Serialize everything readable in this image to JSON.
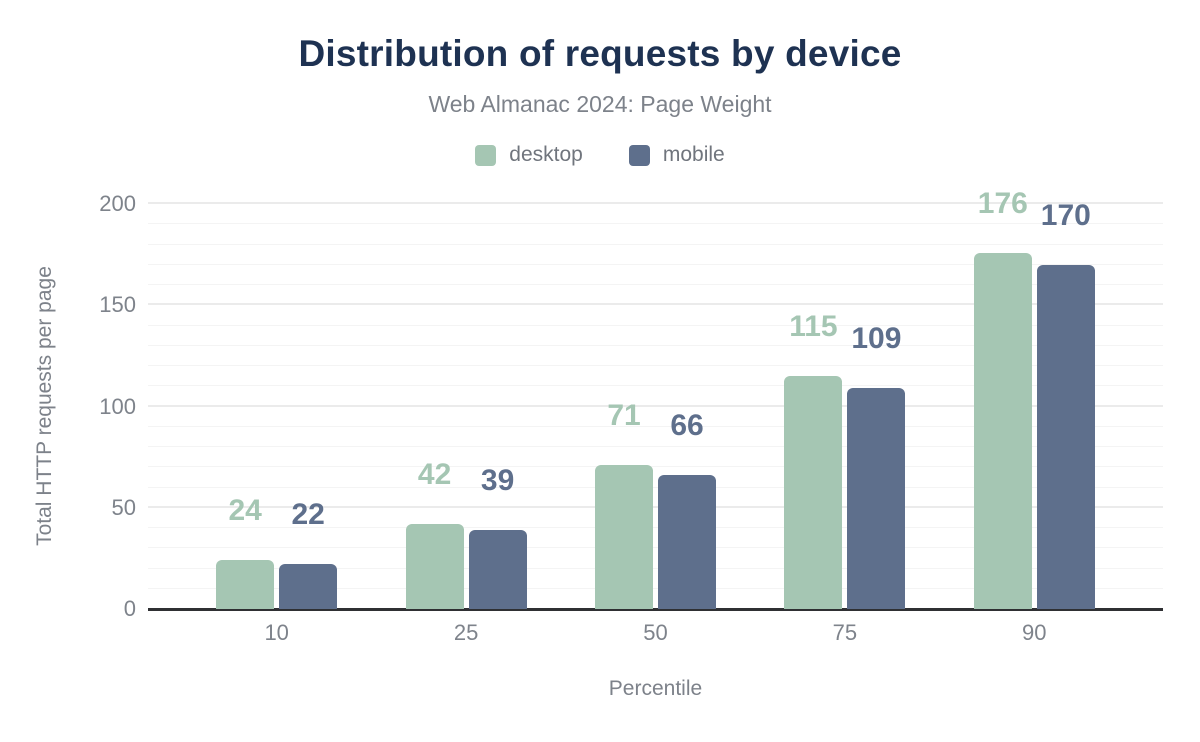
{
  "header": {
    "title": "Distribution of requests by device",
    "subtitle": "Web Almanac 2024: Page Weight"
  },
  "chart_data": {
    "type": "bar",
    "title": "Distribution of requests by device",
    "subtitle": "Web Almanac 2024: Page Weight",
    "categories": [
      "10",
      "25",
      "50",
      "75",
      "90"
    ],
    "series": [
      {
        "name": "desktop",
        "color": "#a5c6b3",
        "values": [
          24,
          42,
          71,
          115,
          176
        ]
      },
      {
        "name": "mobile",
        "color": "#5e6f8c",
        "values": [
          22,
          39,
          66,
          109,
          170
        ]
      }
    ],
    "xlabel": "Percentile",
    "ylabel": "Total HTTP requests per page",
    "ylim": [
      0,
      200
    ],
    "yticks": [
      0,
      50,
      100,
      150,
      200
    ],
    "minor_grid_step": 10,
    "grid": true,
    "legend_position": "top",
    "colors": {
      "title": "#1e3252",
      "muted_text": "#7d828a",
      "axis_line": "#2f3033",
      "gridline_minor": "#f4f4f4",
      "gridline_major": "#ebebeb",
      "background": "#ffffff"
    }
  }
}
